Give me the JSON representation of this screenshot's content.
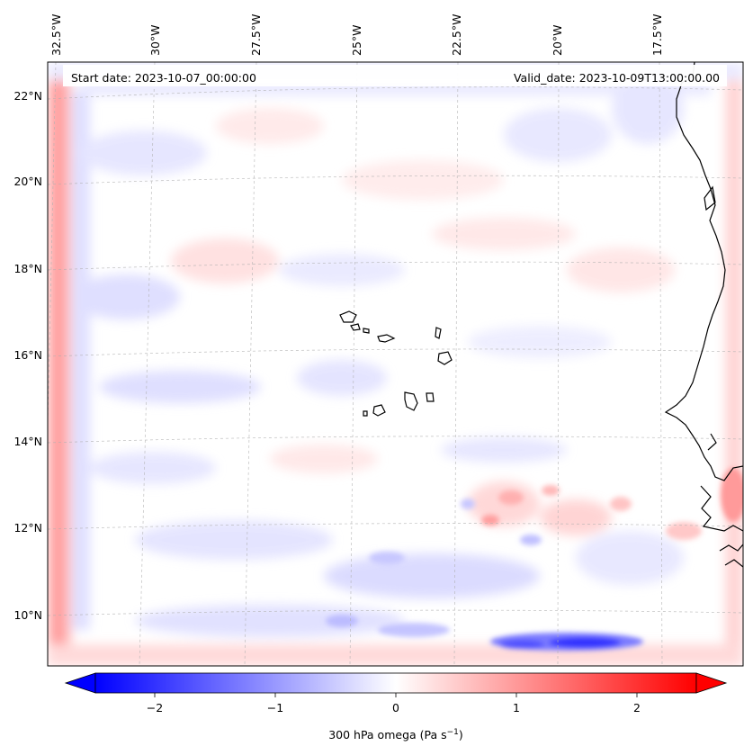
{
  "header": {
    "start_date": "Start date: 2023-10-07_00:00:00",
    "valid_date": "Valid_date: 2023-10-09T13:00:00.00"
  },
  "map": {
    "lon_labels": [
      "32.5°W",
      "30°W",
      "27.5°W",
      "25°W",
      "22.5°W",
      "20°W",
      "17.5°W"
    ],
    "lat_labels": [
      "22°N",
      "20°N",
      "18°N",
      "16°N",
      "14°N",
      "12°N",
      "10°N"
    ],
    "lon_values": [
      -32.5,
      -30,
      -27.5,
      -25,
      -22.5,
      -20,
      -17.5
    ],
    "lat_values": [
      22,
      20,
      18,
      16,
      14,
      12,
      10
    ],
    "gridlines": true,
    "field": "300 hPa vertical velocity (omega)",
    "colormap": "bwr",
    "colors": {
      "negative": "#0000ff",
      "zero": "#ffffff",
      "positive": "#ff0000",
      "grid": "#b0b0b0",
      "coast": "#000000"
    }
  },
  "colorbar": {
    "ticks": [
      "−2",
      "−1",
      "0",
      "1",
      "2"
    ],
    "tick_values": [
      -2,
      -1,
      0,
      1,
      2
    ],
    "range": [
      -2.5,
      2.5
    ],
    "extend": "both",
    "label_main": "300 hPa omega (Pa s",
    "label_exp": "−1",
    "label_end": ")"
  }
}
